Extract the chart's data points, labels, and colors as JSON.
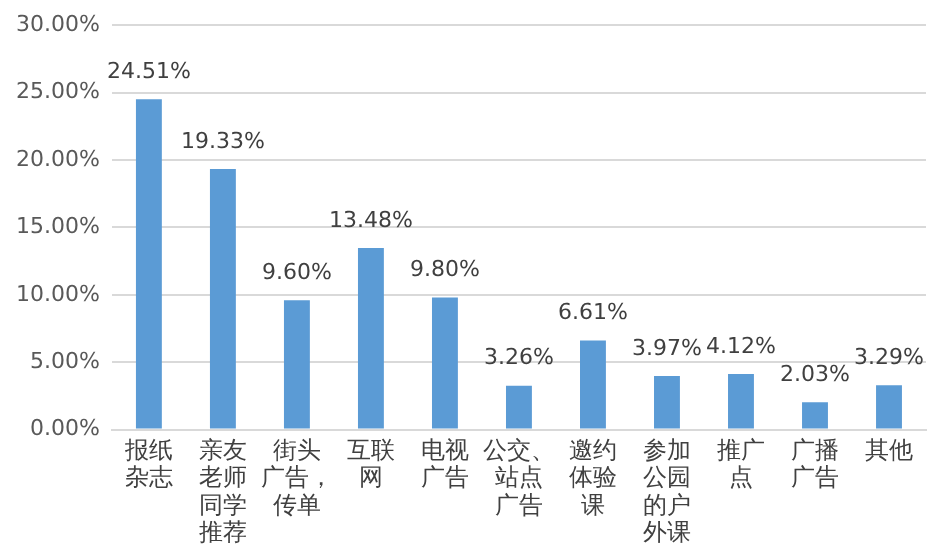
{
  "chart_data": {
    "type": "bar",
    "categories": [
      "报纸杂志",
      "亲友老师同学推荐",
      "街头广告，传单",
      "互联网",
      "电视广告",
      "公交、站点广告",
      "邀约体验课",
      "参加公园的户外课",
      "推广点",
      "广播广告",
      "其他"
    ],
    "values": [
      24.51,
      19.33,
      9.6,
      13.48,
      9.8,
      3.26,
      6.61,
      3.97,
      4.12,
      2.03,
      3.29
    ],
    "value_labels": [
      "24.51%",
      "19.33%",
      "9.60%",
      "13.48%",
      "9.80%",
      "3.26%",
      "6.61%",
      "3.97%",
      "4.12%",
      "2.03%",
      "3.29%"
    ],
    "color": "#5b9bd5",
    "ylim": [
      0,
      30
    ],
    "yticks": [
      {
        "value": 0,
        "label": "0.00%"
      },
      {
        "value": 5,
        "label": "5.00%"
      },
      {
        "value": 10,
        "label": "10.00%"
      },
      {
        "value": 15,
        "label": "15.00%"
      },
      {
        "value": 20,
        "label": "20.00%"
      },
      {
        "value": 25,
        "label": "25.00%"
      },
      {
        "value": 30,
        "label": "30.00%"
      }
    ],
    "grid": "y",
    "legend": false
  }
}
